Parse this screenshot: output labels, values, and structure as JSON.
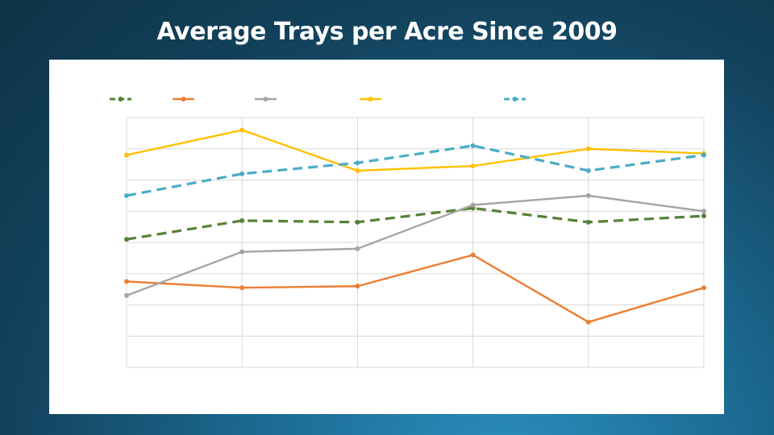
{
  "title": "Average Trays per Acre Since 2009",
  "chart_data": {
    "type": "line",
    "title": "Average Trays per Acre Since 2009",
    "categories": [
      "",
      "",
      "",
      "",
      "",
      ""
    ],
    "grid": true,
    "legend_position": "top",
    "yrange": [
      0,
      8
    ],
    "series": [
      {
        "color": "#548235",
        "dashed": true,
        "values": [
          4.1,
          4.7,
          4.65,
          5.1,
          4.65,
          4.85
        ]
      },
      {
        "color": "#ed7d31",
        "dashed": false,
        "values": [
          2.75,
          2.55,
          2.6,
          3.6,
          1.45,
          2.55
        ]
      },
      {
        "color": "#a5a5a5",
        "dashed": false,
        "values": [
          2.3,
          3.7,
          3.8,
          5.2,
          5.5,
          5.0
        ]
      },
      {
        "color": "#ffc000",
        "dashed": false,
        "values": [
          6.8,
          7.6,
          6.3,
          6.45,
          7.0,
          6.85
        ]
      },
      {
        "color": "#4bacc6",
        "dashed": true,
        "values": [
          5.5,
          6.2,
          6.55,
          7.1,
          6.3,
          6.8
        ]
      }
    ]
  }
}
